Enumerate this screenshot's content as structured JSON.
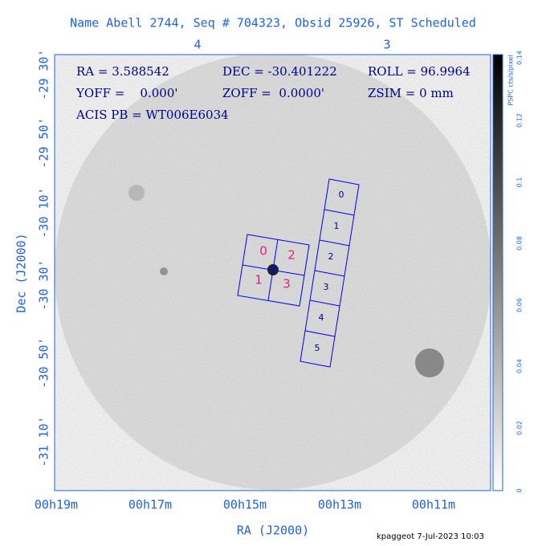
{
  "title": "Name Abell 2744, Seq # 704323, Obsid 25926, ST Scheduled",
  "top_ticks": [
    "4",
    "3"
  ],
  "x_ticks": [
    "00h19m",
    "00h17m",
    "00h15m",
    "00h13m",
    "00h11m"
  ],
  "y_ticks": [
    "-29 30'",
    "-29 50'",
    "-30 10'",
    "-30 30'",
    "-30 50'",
    "-31 10'"
  ],
  "x_label": "RA (J2000)",
  "y_label": "Dec (J2000)",
  "info": [
    "RA = 3.588542",
    "DEC = -30.401222",
    "ROLL = 96.9964",
    "YOFF =    0.000'",
    "ZOFF =  0.0000'",
    "ZSIM = 0 mm",
    "ACIS PB = WT006E6034"
  ],
  "acis_i_chips": [
    "0",
    "2",
    "1",
    "3"
  ],
  "acis_s_chips": [
    "0",
    "1",
    "2",
    "3",
    "4",
    "5"
  ],
  "colorbar_ticks": [
    "0",
    "0.02",
    "0.04",
    "0.06",
    "0.08",
    "0.1",
    "0.12",
    "0.14"
  ],
  "colorbar_label": "PSPC cts/s/pixel",
  "footer": "kpaggeot  7-Jul-2023 10:03"
}
